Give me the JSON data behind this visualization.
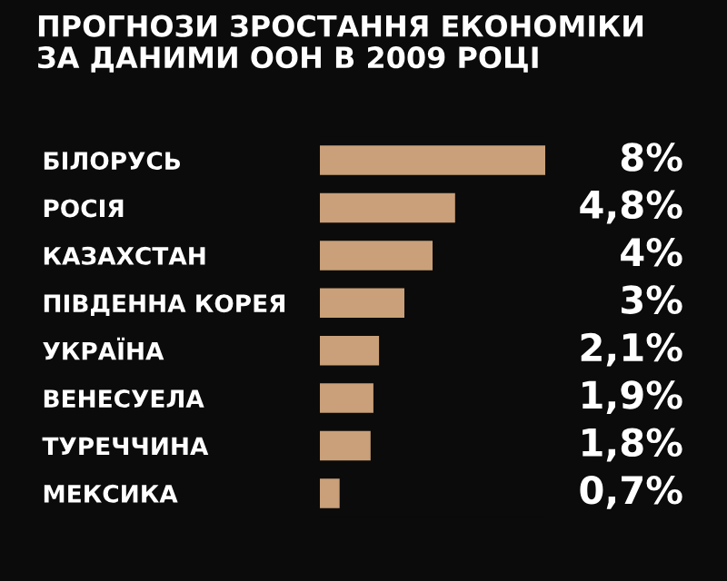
{
  "chart_data": {
    "type": "bar",
    "orientation": "horizontal",
    "title": "ПРОГНОЗИ ЗРОСТАННЯ ЕКОНОМІКИ\nЗА ДАНИМИ ООН В 2009 РОЦІ",
    "categories": [
      "БІЛОРУСЬ",
      "РОСІЯ",
      "КАЗАХСТАН",
      "ПІВДЕННА КОРЕЯ",
      "УКРАЇНА",
      "ВЕНЕСУЕЛА",
      "ТУРЕЧЧИНА",
      "МЕКСИКА"
    ],
    "values": [
      8,
      4.8,
      4,
      3,
      2.1,
      1.9,
      1.8,
      0.7
    ],
    "value_labels": [
      "8%",
      "4,8%",
      "4%",
      "3%",
      "2,1%",
      "1,9%",
      "1,8%",
      "0,7%"
    ],
    "color": "#c9a079",
    "tick_labels": "y",
    "grid": false,
    "legend": false
  }
}
